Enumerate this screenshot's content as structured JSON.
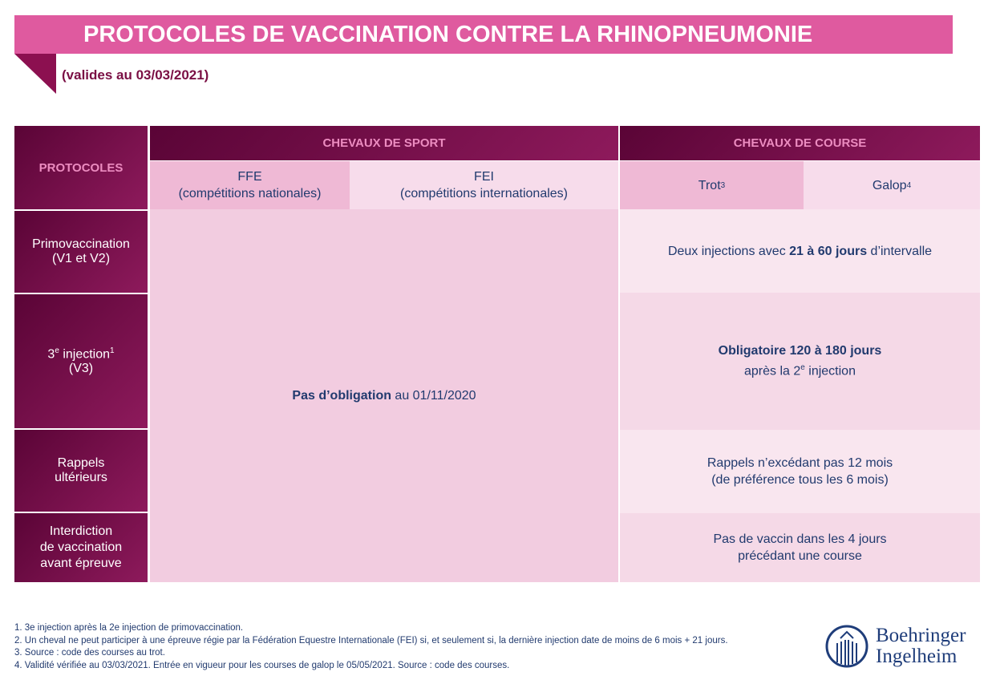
{
  "title": "PROTOCOLES DE VACCINATION CONTRE LA RHINOPNEUMONIE",
  "subtitle": "(valides au 03/03/2021)",
  "table": {
    "protocoles_header": "PROTOCOLES",
    "sport_header": "CHEVAUX DE SPORT",
    "course_header": "CHEVAUX DE COURSE",
    "ffe": {
      "line1": "FFE",
      "line2": "(compétitions nationales)"
    },
    "fei": {
      "line1": "FEI",
      "line2": "(compétitions internationales)"
    },
    "trot": {
      "label": "Trot",
      "sup": "3"
    },
    "galop": {
      "label": "Galop",
      "sup": "4"
    },
    "rows": [
      {
        "label1": "Primovaccination",
        "label2": "(V1 et V2)"
      },
      {
        "label1": "3",
        "label_sup": "e",
        "label1b": " injection",
        "label_sup2": "1",
        "label2": "(V3)"
      },
      {
        "label1": "Rappels",
        "label2": "ultérieurs"
      },
      {
        "label1": "Interdiction",
        "label2": "de vaccination",
        "label3": "avant épreuve"
      }
    ],
    "sport_cell": {
      "bold": "Pas d’obligation",
      "rest": " au 01/11/2020"
    },
    "course_cells": [
      {
        "pre": "Deux injections avec ",
        "bold": "21 à 60 jours",
        "post": " d’intervalle"
      },
      {
        "bold": "Obligatoire 120 à 180 jours",
        "line2a": "après la 2",
        "line2sup": "e",
        "line2b": " injection"
      },
      {
        "line1": "Rappels n’excédant pas 12 mois",
        "line2": "(de préférence tous les 6 mois)"
      },
      {
        "line1": "Pas de vaccin dans les 4 jours",
        "line2": "précédant une course"
      }
    ]
  },
  "footnotes": [
    "1. 3e injection après la 2e injection de primovaccination.",
    "2. Un cheval ne peut participer à une épreuve régie par la Fédération Equestre Internationale (FEI) si, et seulement si, la dernière injection date de moins de 6 mois + 21 jours.",
    "3. Source : code des courses au trot.",
    "4. Validité vérifiée au 03/03/2021. Entrée en vigueur pour les courses de galop le 05/05/2021. Source : code des courses."
  ],
  "logo": {
    "line1": "Boehringer",
    "line2": "Ingelheim"
  },
  "colors": {
    "title_bar": "#df5a9f",
    "dark": "#6b0a45",
    "navy": "#213a6e"
  }
}
